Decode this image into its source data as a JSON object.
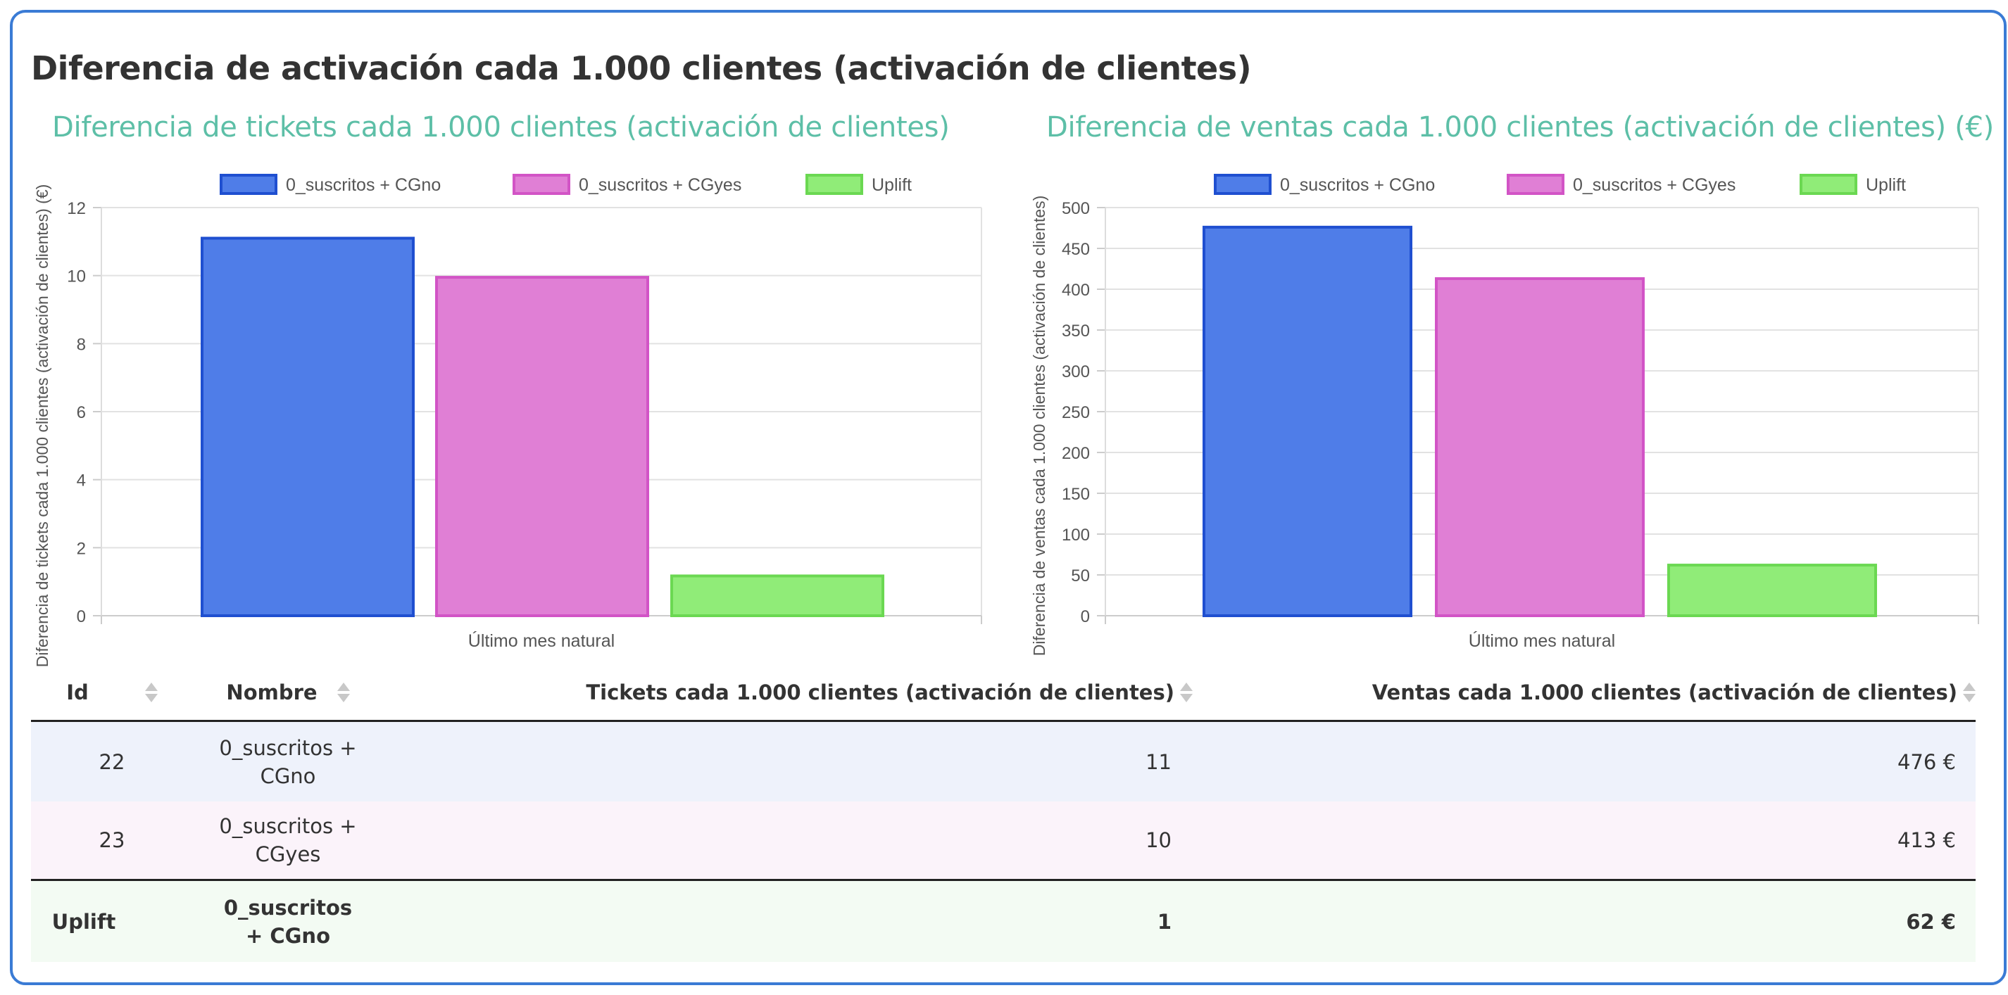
{
  "page_title": "Diferencia de activación cada 1.000 clientes (activación de clientes)",
  "colors": {
    "series": [
      "#4f7de8",
      "#e07fd5",
      "#90ec78"
    ],
    "series_border": [
      "#1f4fd0",
      "#d254c6",
      "#6bd852"
    ],
    "title_accent": "#5dbfa7",
    "card_border": "#3a7bd5"
  },
  "chart_data": [
    {
      "type": "bar",
      "title": "Diferencia de tickets cada 1.000 clientes (activación de clientes)",
      "xlabel": "Último mes natural",
      "ylabel": "Diferencia de tickets cada 1.000 clientes (activación de clientes) (€)",
      "categories": [
        "Último mes natural"
      ],
      "series": [
        {
          "name": "0_suscritos + CGno",
          "values": [
            11.1
          ]
        },
        {
          "name": "0_suscritos + CGyes",
          "values": [
            9.95
          ]
        },
        {
          "name": "Uplift",
          "values": [
            1.17
          ]
        }
      ],
      "ylim": [
        0,
        12
      ],
      "yticks": [
        0,
        2,
        4,
        6,
        8,
        10,
        12
      ],
      "grid": true,
      "legend": "top"
    },
    {
      "type": "bar",
      "title": "Diferencia de ventas cada 1.000 clientes (activación de clientes) (€)",
      "xlabel": "Último mes natural",
      "ylabel": "Diferencia de ventas cada 1.000 clientes (activación de clientes)",
      "categories": [
        "Último mes natural"
      ],
      "series": [
        {
          "name": "0_suscritos + CGno",
          "values": [
            476
          ]
        },
        {
          "name": "0_suscritos + CGyes",
          "values": [
            413
          ]
        },
        {
          "name": "Uplift",
          "values": [
            62
          ]
        }
      ],
      "ylim": [
        0,
        500
      ],
      "yticks": [
        0,
        50,
        100,
        150,
        200,
        250,
        300,
        350,
        400,
        450,
        500
      ],
      "grid": true,
      "legend": "top"
    }
  ],
  "table": {
    "headers": {
      "id": "Id",
      "name": "Nombre",
      "tickets": "Tickets cada 1.000 clientes (activación de clientes)",
      "ventas": "Ventas cada 1.000 clientes (activación de clientes)"
    },
    "rows": [
      {
        "id": "22",
        "name_line1": "0_suscritos +",
        "name_line2": "CGno",
        "tickets": "11",
        "ventas": "476 €"
      },
      {
        "id": "23",
        "name_line1": "0_suscritos +",
        "name_line2": "CGyes",
        "tickets": "10",
        "ventas": "413 €"
      }
    ],
    "total": {
      "id": "Uplift",
      "name_line1": "0_suscritos",
      "name_line2": "+ CGno",
      "tickets": "1",
      "ventas": "62 €"
    }
  }
}
